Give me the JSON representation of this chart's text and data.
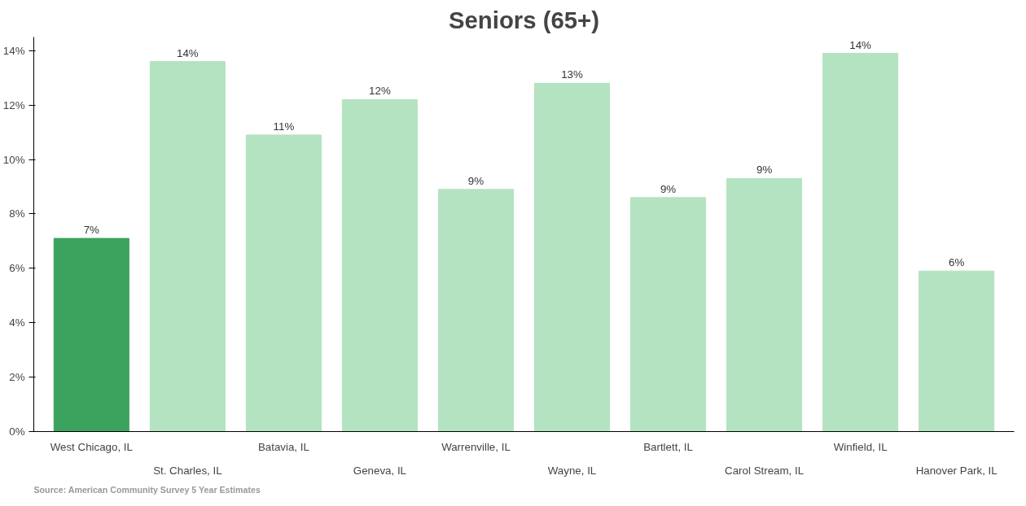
{
  "chart_data": {
    "type": "bar",
    "title": "Seniors (65+)",
    "categories": [
      "West Chicago, IL",
      "St. Charles, IL",
      "Batavia, IL",
      "Geneva, IL",
      "Warrenville, IL",
      "Wayne, IL",
      "Bartlett, IL",
      "Carol Stream, IL",
      "Winfield, IL",
      "Hanover Park, IL"
    ],
    "values": [
      7.1,
      13.6,
      10.9,
      12.2,
      8.9,
      12.8,
      8.6,
      9.3,
      13.9,
      5.9
    ],
    "value_labels": [
      "7%",
      "14%",
      "11%",
      "12%",
      "9%",
      "13%",
      "9%",
      "9%",
      "14%",
      "6%"
    ],
    "colors": [
      "#3ca35f",
      "#b4e3c2",
      "#b4e3c2",
      "#b4e3c2",
      "#b4e3c2",
      "#b4e3c2",
      "#b4e3c2",
      "#b4e3c2",
      "#b4e3c2",
      "#b4e3c2"
    ],
    "ylim": [
      0,
      14.5
    ],
    "yticks": [
      {
        "value": 0,
        "label": "0%"
      },
      {
        "value": 2,
        "label": "2%"
      },
      {
        "value": 4,
        "label": "4%"
      },
      {
        "value": 6,
        "label": "6%"
      },
      {
        "value": 8,
        "label": "8%"
      },
      {
        "value": 10,
        "label": "10%"
      },
      {
        "value": 12,
        "label": "12%"
      },
      {
        "value": 14,
        "label": "14%"
      }
    ],
    "grid": false,
    "annotations": [
      "Source: American Community Survey 5 Year Estimates"
    ]
  }
}
